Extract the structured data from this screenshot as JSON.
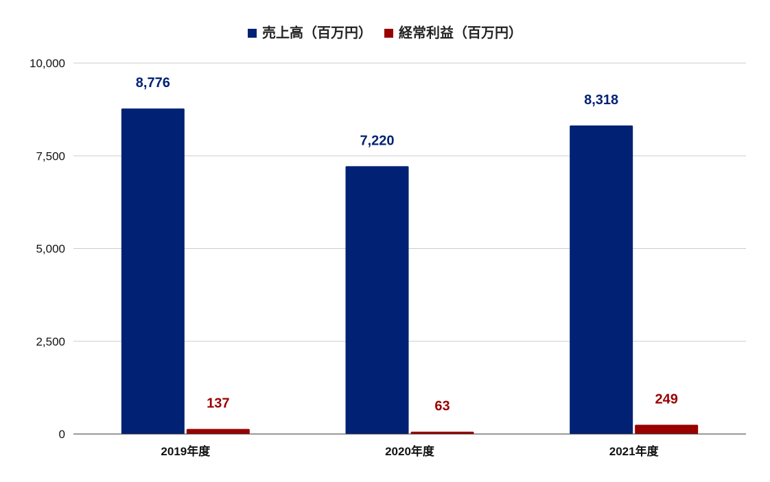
{
  "chart_data": {
    "type": "bar",
    "title": "",
    "xlabel": "",
    "ylabel": "",
    "categories": [
      "2019年度",
      "2020年度",
      "2021年度"
    ],
    "series": [
      {
        "name": "売上高（百万円）",
        "values": [
          8776,
          7220,
          8318
        ],
        "labels": [
          "8,776",
          "7,220",
          "8,318"
        ],
        "color": "#002174"
      },
      {
        "name": "経常利益（百万円）",
        "values": [
          137,
          63,
          249
        ],
        "labels": [
          "137",
          "63",
          "249"
        ],
        "color": "#990000"
      }
    ],
    "ylim": [
      0,
      10000
    ],
    "yticks": [
      0,
      2500,
      5000,
      7500,
      10000
    ],
    "ytick_labels": [
      "0",
      "2,500",
      "5,000",
      "7,500",
      "10,000"
    ],
    "grid": true,
    "legend": "top-center"
  }
}
